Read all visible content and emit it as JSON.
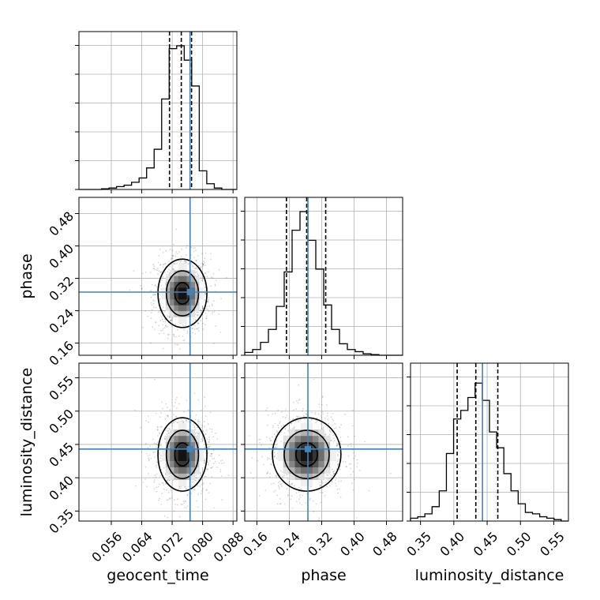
{
  "chart_data": {
    "type": "corner",
    "parameters": [
      "geocent_time",
      "phase",
      "luminosity_distance"
    ],
    "labels": {
      "geocent_time": "geocent_time",
      "phase": "phase",
      "luminosity_distance": "luminosity_distance"
    },
    "ranges": {
      "geocent_time": [
        0.0475,
        0.089
      ],
      "phase": [
        0.13,
        0.52
      ],
      "luminosity_distance": [
        0.335,
        0.572
      ]
    },
    "ticks": {
      "geocent_time": [
        "0.056",
        "0.064",
        "0.072",
        "0.080",
        "0.088"
      ],
      "phase": [
        "0.16",
        "0.24",
        "0.32",
        "0.40",
        "0.48"
      ],
      "luminosity_distance": [
        "0.35",
        "0.40",
        "0.45",
        "0.50",
        "0.55"
      ]
    },
    "truths": {
      "geocent_time": 0.0767,
      "phase": 0.286,
      "luminosity_distance": 0.443
    },
    "quantiles": {
      "geocent_time": [
        0.0713,
        0.0744,
        0.0771
      ],
      "phase": [
        0.233,
        0.283,
        0.33
      ],
      "luminosity_distance": [
        0.405,
        0.433,
        0.466
      ]
    },
    "histograms": {
      "geocent_time": {
        "edges_range": [
          0.0475,
          0.089
        ],
        "counts": [
          0,
          0,
          0,
          0.005,
          0.01,
          0.02,
          0.03,
          0.05,
          0.08,
          0.15,
          0.28,
          0.63,
          0.98,
          1.0,
          0.9,
          0.72,
          0.13,
          0.04,
          0.01,
          0,
          0
        ]
      },
      "phase": {
        "edges_range": [
          0.13,
          0.52
        ],
        "counts": [
          0.02,
          0.04,
          0.09,
          0.18,
          0.34,
          0.58,
          0.87,
          1.0,
          0.8,
          0.6,
          0.35,
          0.18,
          0.08,
          0.04,
          0.025,
          0.01,
          0.005,
          0,
          0,
          0
        ]
      },
      "luminosity_distance": {
        "edges_range": [
          0.335,
          0.572
        ],
        "counts": [
          0.02,
          0.03,
          0.05,
          0.1,
          0.21,
          0.47,
          0.71,
          0.77,
          0.86,
          0.96,
          0.84,
          0.62,
          0.51,
          0.33,
          0.21,
          0.12,
          0.06,
          0.05,
          0.03,
          0.02,
          0.01,
          0
        ]
      }
    },
    "contour_levels": [
      0.39,
      0.86,
      0.99
    ],
    "grid": true,
    "truth_color": "#4682b4",
    "quantile_style": "dashed"
  }
}
